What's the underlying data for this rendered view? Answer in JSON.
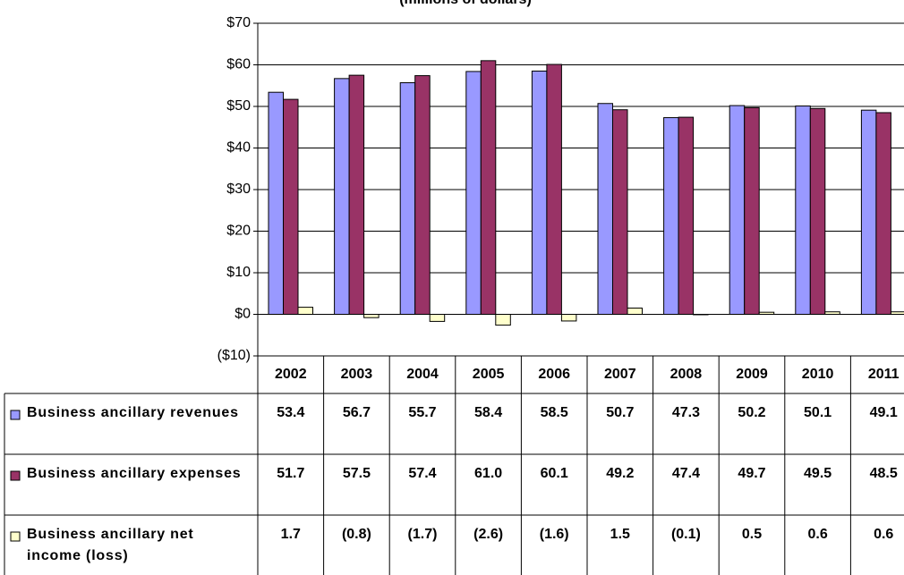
{
  "chart_data": {
    "type": "bar",
    "title": "(millions of dollars)",
    "categories": [
      "2002",
      "2003",
      "2004",
      "2005",
      "2006",
      "2007",
      "2008",
      "2009",
      "2010",
      "2011"
    ],
    "series": [
      {
        "name": "Business ancillary revenues",
        "color": "#9999ff",
        "values": [
          53.4,
          56.7,
          55.7,
          58.4,
          58.5,
          50.7,
          47.3,
          50.2,
          50.1,
          49.1
        ],
        "value_labels": [
          "53.4",
          "56.7",
          "55.7",
          "58.4",
          "58.5",
          "50.7",
          "47.3",
          "50.2",
          "50.1",
          "49.1"
        ]
      },
      {
        "name": "Business ancillary expenses",
        "color": "#993366",
        "values": [
          51.7,
          57.5,
          57.4,
          61.0,
          60.1,
          49.2,
          47.4,
          49.7,
          49.5,
          48.5
        ],
        "value_labels": [
          "51.7",
          "57.5",
          "57.4",
          "61.0",
          "60.1",
          "49.2",
          "47.4",
          "49.7",
          "49.5",
          "48.5"
        ]
      },
      {
        "name": "Business ancillary net income (loss)",
        "color": "#ffffcc",
        "values": [
          1.7,
          -0.8,
          -1.7,
          -2.6,
          -1.6,
          1.5,
          -0.1,
          0.5,
          0.6,
          0.6
        ],
        "value_labels": [
          "1.7",
          "(0.8)",
          "(1.7)",
          "(2.6)",
          "(1.6)",
          "1.5",
          "(0.1)",
          "0.5",
          "0.6",
          "0.6"
        ]
      }
    ],
    "ylim": [
      -10,
      70
    ],
    "yticks": [
      {
        "value": -10,
        "label": "($10)"
      },
      {
        "value": 0,
        "label": "$0"
      },
      {
        "value": 10,
        "label": "$10"
      },
      {
        "value": 20,
        "label": "$20"
      },
      {
        "value": 30,
        "label": "$30"
      },
      {
        "value": 40,
        "label": "$40"
      },
      {
        "value": 50,
        "label": "$50"
      },
      {
        "value": 60,
        "label": "$60"
      },
      {
        "value": 70,
        "label": "$70"
      }
    ],
    "grid": true
  }
}
